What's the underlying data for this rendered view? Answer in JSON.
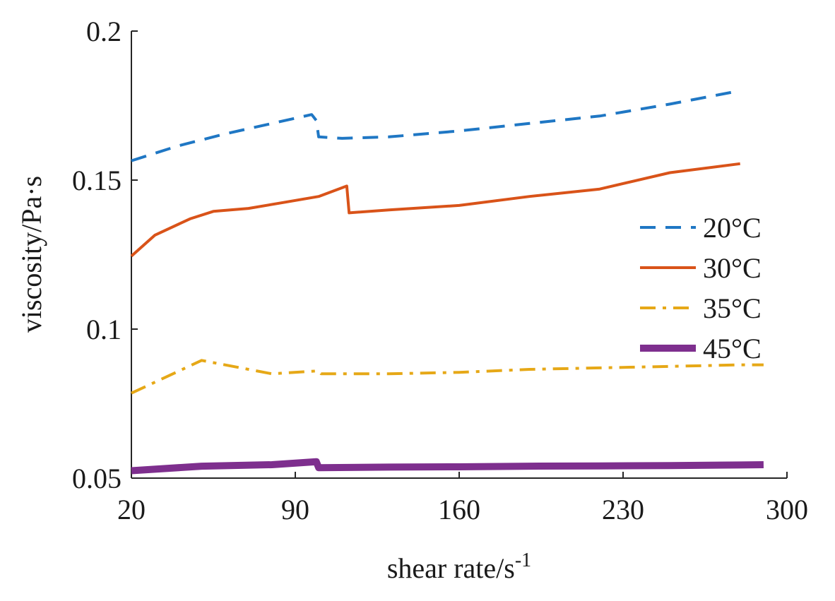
{
  "chart_data": {
    "type": "line",
    "title": "",
    "xlabel": "shear rate/s",
    "xlabel_superscript": "-1",
    "ylabel": "viscosity/Pa·s",
    "xlim": [
      20,
      300
    ],
    "ylim": [
      0.05,
      0.2
    ],
    "xticks": [
      "20",
      "90",
      "160",
      "230",
      "300"
    ],
    "yticks": [
      "0.05",
      "0.1",
      "0.15",
      "0.2"
    ],
    "grid": false,
    "legend_position": "right",
    "series": [
      {
        "name": "20°C",
        "color": "#1f77c4",
        "style": "dashed",
        "x": [
          20,
          40,
          60,
          80,
          97,
          99,
          100,
          110,
          130,
          160,
          190,
          220,
          250,
          280
        ],
        "y": [
          0.1565,
          0.1615,
          0.1655,
          0.169,
          0.172,
          0.17,
          0.1645,
          0.164,
          0.1645,
          0.1665,
          0.169,
          0.1715,
          0.1755,
          0.18
        ]
      },
      {
        "name": "30°C",
        "color": "#d95319",
        "style": "solid",
        "x": [
          20,
          30,
          45,
          55,
          70,
          85,
          100,
          112,
          113,
          130,
          160,
          190,
          220,
          250,
          280
        ],
        "y": [
          0.1245,
          0.1315,
          0.137,
          0.1395,
          0.1405,
          0.1425,
          0.1445,
          0.148,
          0.139,
          0.14,
          0.1415,
          0.1445,
          0.147,
          0.1525,
          0.1555
        ]
      },
      {
        "name": "35°C",
        "color": "#e6a817",
        "style": "dashdot",
        "x": [
          20,
          50,
          80,
          100,
          101,
          130,
          160,
          190,
          220,
          250,
          280,
          290
        ],
        "y": [
          0.0785,
          0.0895,
          0.085,
          0.086,
          0.085,
          0.085,
          0.0855,
          0.0865,
          0.087,
          0.0875,
          0.088,
          0.088
        ]
      },
      {
        "name": "45°C",
        "color": "#7e2f8e",
        "style": "solid-thick",
        "x": [
          20,
          50,
          80,
          99,
          100,
          130,
          160,
          190,
          220,
          250,
          280,
          290
        ],
        "y": [
          0.0525,
          0.054,
          0.0545,
          0.0555,
          0.0535,
          0.0537,
          0.0538,
          0.054,
          0.0541,
          0.0542,
          0.0544,
          0.0545
        ]
      }
    ]
  }
}
